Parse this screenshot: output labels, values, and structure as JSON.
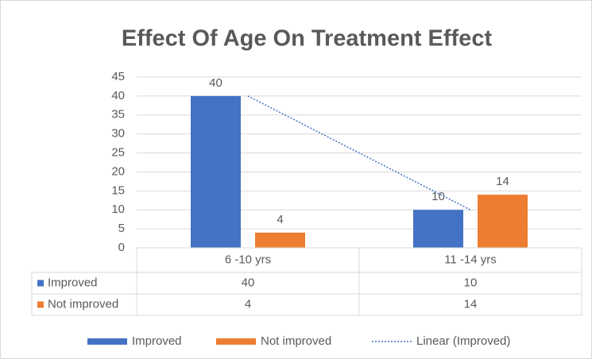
{
  "chart_data": {
    "type": "bar",
    "title": "Effect Of Age On Treatment Effect",
    "categories": [
      "6 -10 yrs",
      "11 -14 yrs"
    ],
    "series": [
      {
        "name": "Improved",
        "color": "#4472c4",
        "values": [
          40,
          10
        ]
      },
      {
        "name": "Not improved",
        "color": "#ed7d31",
        "values": [
          4,
          14
        ]
      }
    ],
    "trendline": {
      "name": "Linear (Improved)",
      "series": 0,
      "type": "linear",
      "color": "#4472c4"
    },
    "ylim": [
      0,
      45
    ],
    "yticks": [
      0,
      5,
      10,
      15,
      20,
      25,
      30,
      35,
      40,
      45
    ],
    "grid": true,
    "data_table": true,
    "legend": "bottom"
  }
}
